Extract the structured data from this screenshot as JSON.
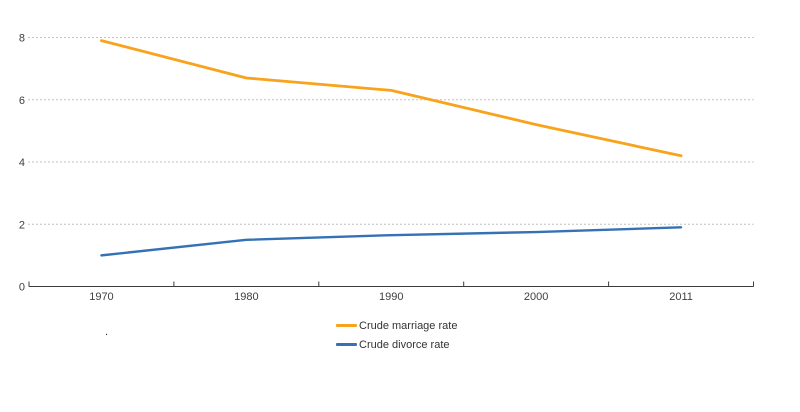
{
  "chart_data": {
    "type": "line",
    "categories": [
      "1970",
      "1980",
      "1990",
      "2000",
      "2011"
    ],
    "series": [
      {
        "name": "Crude marriage rate",
        "color": "#F9A21B",
        "values": [
          7.9,
          6.7,
          6.3,
          5.2,
          4.2
        ]
      },
      {
        "name": "Crude divorce rate",
        "color": "#3572B5",
        "values": [
          1.0,
          1.5,
          1.65,
          1.75,
          1.9
        ]
      }
    ],
    "title": "",
    "xlabel": "",
    "ylabel": "",
    "ylim": [
      0,
      8
    ],
    "yticks": [
      0,
      2,
      4,
      6,
      8
    ],
    "grid": "horizontal-dotted",
    "legend_position": "below-center"
  },
  "annotations": {
    "stray_mark": "."
  },
  "colors": {
    "background": "#FFFFFF",
    "gridline": "#C0C0C0",
    "axis": "#3C3C3C",
    "tick_text": "#404040"
  }
}
